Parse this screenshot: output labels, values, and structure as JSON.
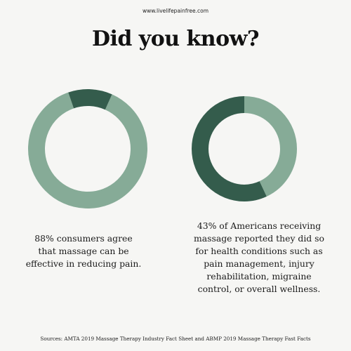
{
  "header": {
    "site_url": "www.livelifepainfree.com",
    "title": "Did you know?"
  },
  "colors": {
    "background": "#f6f6f4",
    "highlight": "#345c4c",
    "remainder": "#86ab97"
  },
  "chart_data": [
    {
      "type": "pie",
      "variant": "donut",
      "slices": [
        {
          "value": 88,
          "color": "#86ab97"
        },
        {
          "value": 12,
          "color": "#345c4c"
        }
      ],
      "caption": "88% consumers agree that massage can be effective in reducing pain."
    },
    {
      "type": "pie",
      "variant": "donut",
      "slices": [
        {
          "value": 43,
          "color": "#86ab97"
        },
        {
          "value": 57,
          "color": "#345c4c"
        }
      ],
      "caption": "43% of Americans receiving massage reported they did so for health conditions such as pain management, injury rehabilitation, migraine control, or overall wellness."
    }
  ],
  "footer": {
    "sources": "Sources: AMTA 2019 Massage Therapy Industry Fact Sheet and ABMP 2019 Massage Therapy Fast Facts"
  }
}
